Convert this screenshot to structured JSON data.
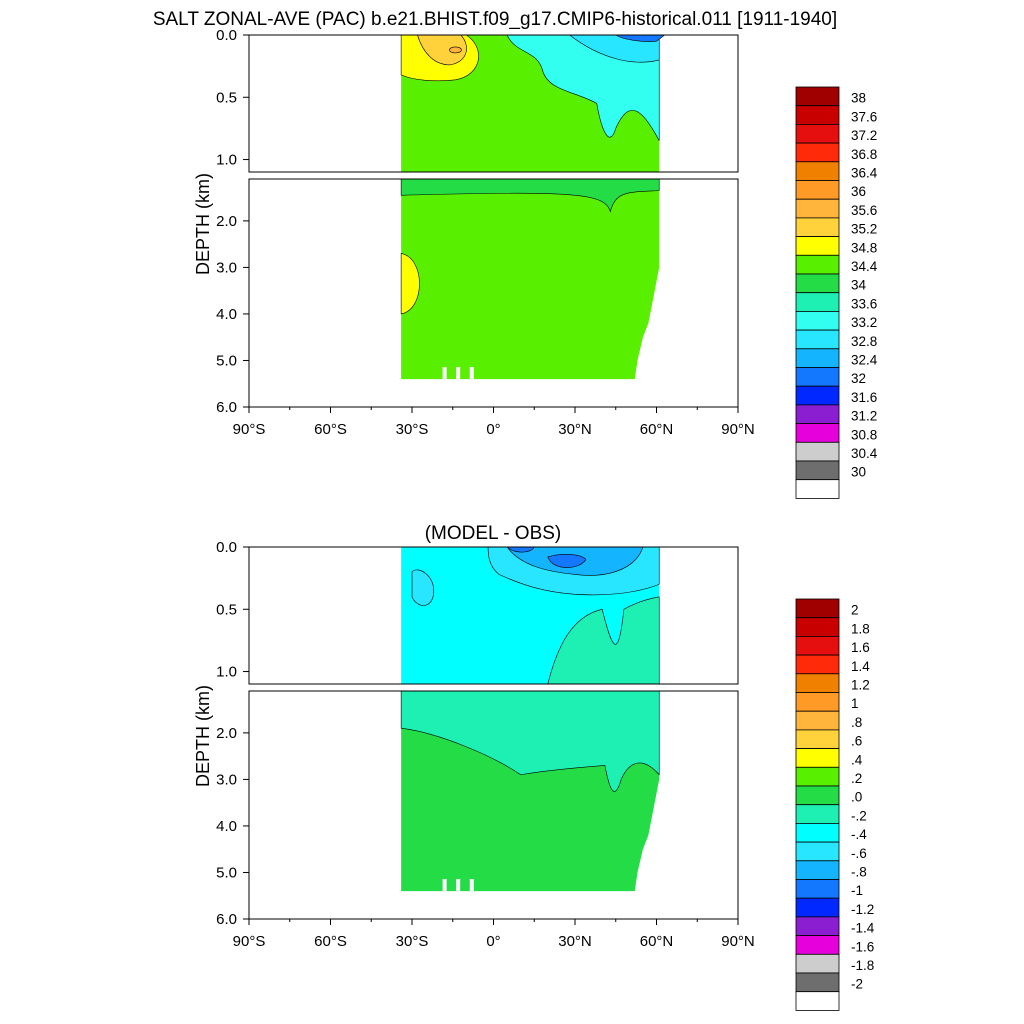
{
  "chart_data": [
    {
      "type": "heatmap",
      "title": "SALT ZONAL-AVE (PAC) b.e21.BHIST.f09_g17.CMIP6-historical.011 [1911-1940]",
      "ylabel": "DEPTH (km)",
      "xticks": [
        "90°S",
        "60°S",
        "30°S",
        "0°",
        "30°N",
        "60°N",
        "90°N"
      ],
      "upper_yticks": [
        "0.0",
        "0.5",
        "1.0"
      ],
      "lower_yticks": [
        "2.0",
        "3.0",
        "4.0",
        "5.0",
        "6.0"
      ],
      "xlim": [
        -90,
        90
      ],
      "ylim": [
        0,
        6.0
      ],
      "upper_panel_range_km": [
        0,
        1.1
      ],
      "lower_panel_range_km": [
        1.1,
        6.0
      ],
      "data_extent": {
        "lat": [
          -34,
          61
        ],
        "depth_km": [
          0,
          5.4
        ]
      },
      "colorbar": {
        "labels": [
          "38",
          "37.6",
          "37.2",
          "36.8",
          "36.4",
          "36",
          "35.6",
          "35.2",
          "34.8",
          "34.4",
          "34",
          "33.6",
          "33.2",
          "32.8",
          "32.4",
          "32",
          "31.6",
          "31.2",
          "30.8",
          "30.4",
          "30"
        ],
        "colors": [
          "#a00000",
          "#c80000",
          "#e60f0f",
          "#ff2a0a",
          "#f08000",
          "#ff9a26",
          "#ffb43c",
          "#ffd23c",
          "#ffff00",
          "#58f000",
          "#23dc46",
          "#1ef0b4",
          "#32fff0",
          "#28e6ff",
          "#14b4ff",
          "#1478ff",
          "#0028ff",
          "#8c1ed2",
          "#e600dc",
          "#cdcdcd",
          "#6e6e6e",
          "#ffffff"
        ]
      },
      "dominant_value_ranges": {
        "deep_ocean": "34.4-34.8",
        "south_subtropical_surface_max": "35.6-36.0",
        "north_surface": "32.0-33.6"
      }
    },
    {
      "type": "heatmap",
      "title": "(MODEL - OBS)",
      "ylabel": "DEPTH (km)",
      "xticks": [
        "90°S",
        "60°S",
        "30°S",
        "0°",
        "30°N",
        "60°N",
        "90°N"
      ],
      "upper_yticks": [
        "0.0",
        "0.5",
        "1.0"
      ],
      "lower_yticks": [
        "2.0",
        "3.0",
        "4.0",
        "5.0",
        "6.0"
      ],
      "xlim": [
        -90,
        90
      ],
      "ylim": [
        0,
        6.0
      ],
      "data_extent": {
        "lat": [
          -34,
          61
        ],
        "depth_km": [
          0,
          5.4
        ]
      },
      "colorbar": {
        "labels": [
          "2",
          "1.8",
          "1.6",
          "1.4",
          "1.2",
          "1",
          ".8",
          ".6",
          ".4",
          ".2",
          ".0",
          "-.2",
          "-.4",
          "-.6",
          "-.8",
          "-1",
          "-1.2",
          "-1.4",
          "-1.6",
          "-1.8",
          "-2"
        ],
        "colors": [
          "#a00000",
          "#c80000",
          "#e60f0f",
          "#ff2a0a",
          "#f08000",
          "#ff9a26",
          "#ffb43c",
          "#ffd23c",
          "#ffff00",
          "#58f000",
          "#23dc46",
          "#1ef0b4",
          "#00ffff",
          "#28e6ff",
          "#14b4ff",
          "#1478ff",
          "#0028ff",
          "#8c1ed2",
          "#e600dc",
          "#cdcdcd",
          "#6e6e6e",
          "#ffffff"
        ]
      },
      "dominant_value_ranges": {
        "deep_ocean": "0.0-0.2",
        "intermediate": "-0.2-0.0",
        "upper_ocean": "-0.4--0.2",
        "north_surface": "-1.0--0.6"
      }
    }
  ]
}
